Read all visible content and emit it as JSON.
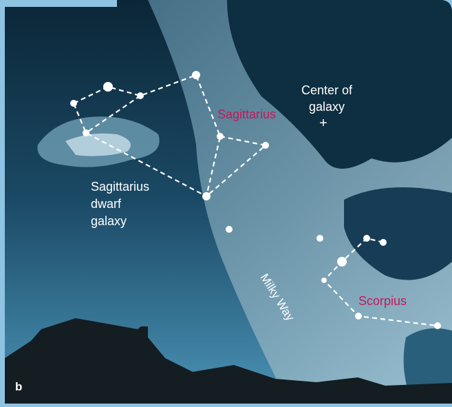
{
  "labels": {
    "center": [
      "Center of",
      "galaxy"
    ],
    "center_marker": "+",
    "sagittarius": "Sagittarius",
    "dwarf": [
      "Sagittarius",
      "dwarf",
      "galaxy"
    ],
    "milky_way": "Milky Way",
    "scorpius": "Scorpius",
    "panel": "b"
  }
}
